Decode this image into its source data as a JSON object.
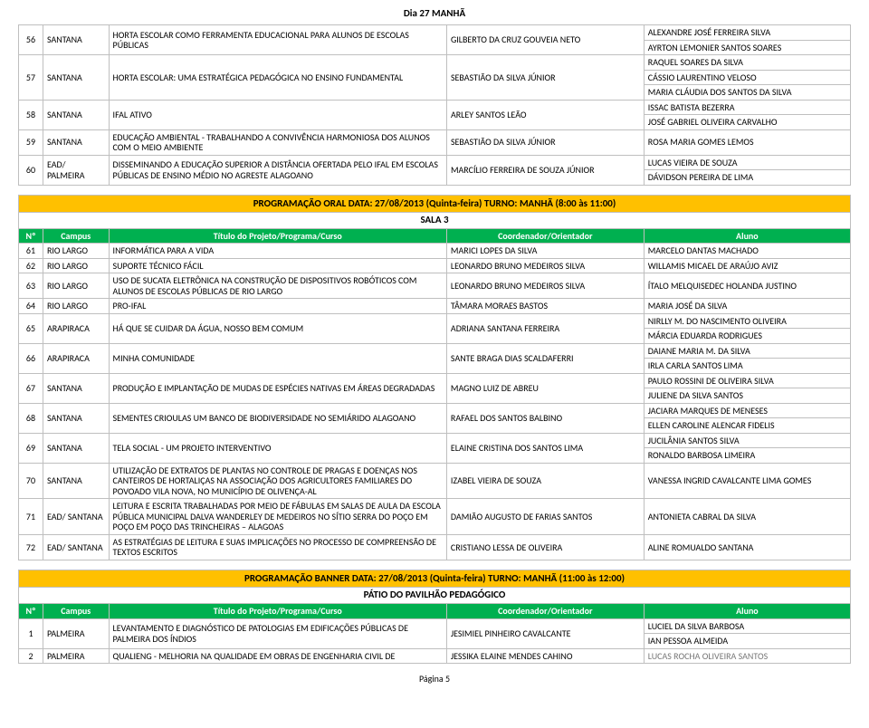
{
  "page_title": "Dia 27 MANHÃ",
  "footer": "Página 5",
  "colors": {
    "section_bar_bg": "#ffc000",
    "header_bg": "#00b050",
    "header_fg": "#ffffff",
    "border": "#bfbfbf"
  },
  "table1": {
    "rows": [
      {
        "n": "56",
        "campus": "SANTANA",
        "titulo": "HORTA ESCOLAR COMO FERRAMENTA EDUCACIONAL PARA ALUNOS DE ESCOLAS PÚBLICAS",
        "coord": "GILBERTO DA CRUZ GOUVEIA NETO",
        "alunos": [
          "ALEXANDRE JOSÉ FERREIRA SILVA",
          "AYRTON LEMONIER SANTOS SOARES"
        ]
      },
      {
        "n": "57",
        "campus": "SANTANA",
        "titulo": "HORTA ESCOLAR: UMA ESTRATÉGICA PEDAGÓGICA NO ENSINO FUNDAMENTAL",
        "coord": "SEBASTIÃO DA SILVA JÚNIOR",
        "alunos": [
          "RAQUEL SOARES DA SILVA",
          "CÁSSIO LAURENTINO VELOSO",
          "MARIA CLÁUDIA DOS SANTOS DA SILVA"
        ]
      },
      {
        "n": "58",
        "campus": "SANTANA",
        "titulo": "IFAL ATIVO",
        "coord": "ARLEY SANTOS LEÃO",
        "alunos": [
          "ISSAC BATISTA BEZERRA",
          "JOSÉ GABRIEL OLIVEIRA CARVALHO"
        ]
      },
      {
        "n": "59",
        "campus": "SANTANA",
        "titulo": "EDUCAÇÃO AMBIENTAL - TRABALHANDO A CONVIVÊNCIA HARMONIOSA DOS ALUNOS COM O MEIO AMBIENTE",
        "coord": "SEBASTIÃO DA SILVA JÚNIOR",
        "alunos": [
          "ROSA MARIA GOMES LEMOS"
        ]
      },
      {
        "n": "60",
        "campus": "EAD/ PALMEIRA",
        "titulo": "DISSEMINANDO A EDUCAÇÃO SUPERIOR A DISTÂNCIA OFERTADA PELO IFAL EM ESCOLAS PÚBLICAS DE ENSINO MÉDIO NO AGRESTE ALAGOANO",
        "coord": "MARCÍLIO FERREIRA DE SOUZA JÚNIOR",
        "alunos": [
          "LUCAS VIEIRA DE SOUZA",
          "DÁVIDSON PEREIRA DE LIMA"
        ]
      }
    ]
  },
  "section2": {
    "bar": "PROGRAMAÇÃO ORAL DATA: 27/08/2013 (Quinta-feira) TURNO: MANHÃ (8:00 às 11:00)",
    "sala": "SALA 3",
    "headers": {
      "n": "Nº",
      "campus": "Campus",
      "titulo": "Título do Projeto/Programa/Curso",
      "coord": "Coordenador/Orientador",
      "aluno": "Aluno"
    },
    "rows": [
      {
        "n": "61",
        "campus": "RIO LARGO",
        "titulo": "INFORMÁTICA PARA A VIDA",
        "coord": "MARICI LOPES DA SILVA",
        "alunos": [
          "MARCELO DANTAS MACHADO"
        ]
      },
      {
        "n": "62",
        "campus": "RIO LARGO",
        "titulo": "SUPORTE TÉCNICO FÁCIL",
        "coord": "LEONARDO BRUNO MEDEIROS SILVA",
        "alunos": [
          "WILLAMIS MICAEL DE ARAÚJO AVIZ"
        ]
      },
      {
        "n": "63",
        "campus": "RIO LARGO",
        "titulo": "USO DE SUCATA ELETRÔNICA NA CONSTRUÇÃO DE DISPOSITIVOS ROBÓTICOS COM ALUNOS DE ESCOLAS PÚBLICAS DE RIO LARGO",
        "coord": "LEONARDO BRUNO MEDEIROS SILVA",
        "alunos": [
          "ÍTALO MELQUISEDEC HOLANDA JUSTINO"
        ]
      },
      {
        "n": "64",
        "campus": "RIO LARGO",
        "titulo": "PRO-IFAL",
        "coord": "TÂMARA MORAES BASTOS",
        "alunos": [
          "MARIA JOSÉ DA SILVA"
        ]
      },
      {
        "n": "65",
        "campus": "ARAPIRACA",
        "titulo": "HÁ QUE SE CUIDAR DA ÁGUA, NOSSO BEM COMUM",
        "coord": "ADRIANA SANTANA FERREIRA",
        "alunos": [
          "NIRLLY M. DO NASCIMENTO OLIVEIRA",
          "MÁRCIA EDUARDA RODRIGUES"
        ]
      },
      {
        "n": "66",
        "campus": "ARAPIRACA",
        "titulo": "MINHA COMUNIDADE",
        "coord": "SANTE BRAGA DIAS SCALDAFERRI",
        "alunos": [
          "DAIANE MARIA M. DA SILVA",
          "IRLA CARLA SANTOS LIMA"
        ]
      },
      {
        "n": "67",
        "campus": "SANTANA",
        "titulo": "PRODUÇÃO E IMPLANTAÇÃO DE MUDAS DE ESPÉCIES NATIVAS EM ÁREAS DEGRADADAS",
        "coord": "MAGNO LUIZ DE ABREU",
        "alunos": [
          "PAULO ROSSINI DE OLIVEIRA SILVA",
          "JULIENE DA SILVA SANTOS"
        ]
      },
      {
        "n": "68",
        "campus": "SANTANA",
        "titulo": "SEMENTES CRIOULAS UM BANCO DE BIODIVERSIDADE NO SEMIÁRIDO ALAGOANO",
        "coord": "RAFAEL DOS SANTOS BALBINO",
        "alunos": [
          "JACIARA MARQUES DE MENESES",
          "ELLEN CAROLINE ALENCAR FIDELIS"
        ]
      },
      {
        "n": "69",
        "campus": "SANTANA",
        "titulo": "TELA SOCIAL - UM PROJETO INTERVENTIVO",
        "coord": "ELAINE CRISTINA DOS SANTOS LIMA",
        "alunos": [
          "JUCILÂNIA SANTOS SILVA",
          "RONALDO BARBOSA LIMEIRA"
        ]
      },
      {
        "n": "70",
        "campus": "SANTANA",
        "titulo": "UTILIZAÇÃO DE EXTRATOS DE PLANTAS NO CONTROLE DE PRAGAS E DOENÇAS NOS CANTEIROS DE HORTALIÇAS NA ASSOCIAÇÃO DOS AGRICULTORES FAMILIARES DO POVOADO VILA NOVA, NO MUNICÍPIO DE OLIVENÇA-AL",
        "coord": "IZABEL VIEIRA DE SOUZA",
        "alunos": [
          "VANESSA INGRID CAVALCANTE LIMA GOMES"
        ]
      },
      {
        "n": "71",
        "campus": "EAD/ SANTANA",
        "titulo": "LEITURA E ESCRITA TRABALHADAS POR MEIO DE FÁBULAS EM SALAS DE AULA DA ESCOLA PÚBLICA MUNICIPAL DALVA WANDERLEY DE MEDEIROS NO SÍTIO SERRA DO POÇO EM POÇO EM POÇO DAS TRINCHEIRAS – ALAGOAS",
        "coord": "DAMIÃO AUGUSTO DE FARIAS SANTOS",
        "alunos": [
          "ANTONIETA CABRAL DA SILVA"
        ]
      },
      {
        "n": "72",
        "campus": "EAD/ SANTANA",
        "titulo": "AS ESTRATÉGIAS DE LEITURA E SUAS IMPLICAÇÕES NO PROCESSO DE COMPREENSÃO DE TEXTOS ESCRITOS",
        "coord": "CRISTIANO LESSA DE OLIVEIRA",
        "alunos": [
          "ALINE ROMUALDO SANTANA"
        ]
      }
    ]
  },
  "section3": {
    "bar": "PROGRAMAÇÃO BANNER DATA: 27/08/2013 (Quinta-feira) TURNO: MANHÃ (11:00 às 12:00)",
    "sala": "PÁTIO DO PAVILHÃO PEDAGÓGICO",
    "headers": {
      "n": "Nº",
      "campus": "Campus",
      "titulo": "Título do Projeto/Programa/Curso",
      "coord": "Coordenador/Orientador",
      "aluno": "Aluno"
    },
    "rows": [
      {
        "n": "1",
        "campus": "PALMEIRA",
        "titulo": "LEVANTAMENTO E DIAGNÓSTICO DE PATOLOGIAS EM EDIFICAÇÕES PÚBLICAS DE PALMEIRA DOS ÍNDIOS",
        "coord": "JESIMIEL PINHEIRO CAVALCANTE",
        "alunos": [
          "LUCIEL DA SILVA BARBOSA",
          "IAN PESSOA ALMEIDA"
        ]
      },
      {
        "n": "2",
        "campus": "PALMEIRA",
        "titulo": "QUALIENG - MELHORIA NA QUALIDADE EM OBRAS DE ENGENHARIA CIVIL DE",
        "coord": "JESSIKA ELAINE MENDES CAHINO",
        "alunos": [
          "LUCAS ROCHA OLIVEIRA SANTOS"
        ],
        "cut": true
      }
    ]
  }
}
